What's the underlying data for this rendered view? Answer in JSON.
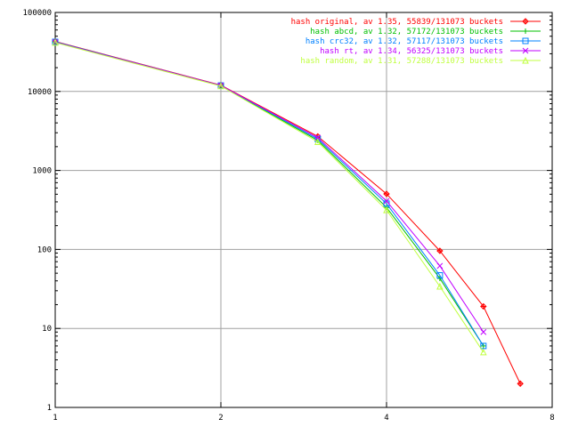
{
  "chart_data": {
    "type": "line",
    "title": "",
    "xlabel": "",
    "ylabel": "",
    "xscale": "log2",
    "yscale": "log10",
    "xlim": [
      1,
      8
    ],
    "ylim": [
      1,
      100000
    ],
    "x_ticks": [
      "1",
      "2",
      "4",
      "8"
    ],
    "y_ticks": [
      "1",
      "10",
      "100",
      "1000",
      "10000",
      "100000"
    ],
    "grid": true,
    "legend_position": "top-right",
    "x": [
      1,
      2,
      3,
      4,
      5,
      6,
      7
    ],
    "series": [
      {
        "name": "hash original, av 1.35, 55839/131073 buckets",
        "color": "#ff0000",
        "marker": "diamond",
        "values": [
          43000,
          12000,
          2700,
          505,
          96,
          19,
          2
        ]
      },
      {
        "name": "hash abcd, av 1.32, 57172/131073 buckets",
        "color": "#00c000",
        "marker": "plus",
        "values": [
          42000,
          11800,
          2400,
          340,
          43,
          6,
          null
        ]
      },
      {
        "name": "hash crc32, av 1.32, 57117/131073 buckets",
        "color": "#0080ff",
        "marker": "square",
        "values": [
          42500,
          11900,
          2500,
          380,
          47,
          6,
          null
        ]
      },
      {
        "name": "hash rt, av 1.34, 56325/131073 buckets",
        "color": "#c000ff",
        "marker": "cross",
        "values": [
          42000,
          11900,
          2600,
          410,
          62,
          9,
          null
        ]
      },
      {
        "name": "hash random, av 1.31, 57288/131073 buckets",
        "color": "#c0ff40",
        "marker": "triangle",
        "values": [
          41500,
          11700,
          2300,
          315,
          34,
          5,
          null
        ]
      }
    ]
  }
}
